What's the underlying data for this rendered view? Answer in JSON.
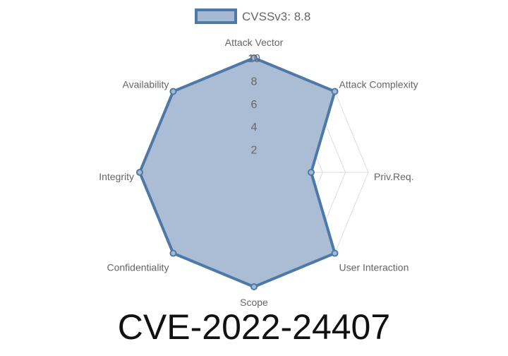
{
  "chart_data": {
    "type": "radar",
    "title": "CVE-2022-24407",
    "legend": {
      "label": "CVSSv3: 8.8",
      "placement": "top"
    },
    "categories": [
      "Attack Vector",
      "Attack Complexity",
      "Priv.Req.",
      "User Interaction",
      "Scope",
      "Confidentiality",
      "Integrity",
      "Availability"
    ],
    "series": [
      {
        "name": "CVSSv3: 8.8",
        "values": [
          10,
          10,
          5,
          10,
          10,
          10,
          10,
          10
        ]
      }
    ],
    "rlim": [
      0,
      10
    ],
    "ticks": [
      "2",
      "4",
      "6",
      "8",
      "10"
    ],
    "grid": true,
    "colors": {
      "line": "#4e79a7",
      "fill": "#a5b9d3",
      "grid": "#dddddd"
    }
  }
}
